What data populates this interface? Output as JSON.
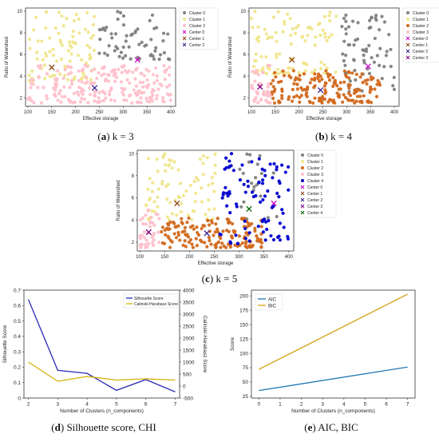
{
  "captions": [
    {
      "id": "a",
      "letter": "a",
      "text": " k = 3"
    },
    {
      "id": "b",
      "letter": "b",
      "text": " k = 4"
    },
    {
      "id": "c",
      "letter": "c",
      "text": " k = 5"
    },
    {
      "id": "d",
      "letter": "d",
      "text": " Silhouette score, CHI"
    },
    {
      "id": "e",
      "letter": "e",
      "text": " AIC, BIC"
    }
  ],
  "chart_data": [
    {
      "id": "a",
      "type": "scatter",
      "title": "",
      "xlabel": "Effective storage",
      "ylabel": "Ratio of Watershed",
      "xlim": [
        95,
        410
      ],
      "ylim": [
        1.2,
        10.3
      ],
      "xticks": [
        100,
        150,
        200,
        250,
        300,
        350,
        400
      ],
      "yticks": [
        2,
        4,
        6,
        8,
        10
      ],
      "legend_position": "top-right",
      "clusters": [
        {
          "name": "Cluster 0",
          "color": "#808080",
          "region": {
            "x": [
              245,
              400
            ],
            "y": [
              5.5,
              10
            ]
          },
          "n": 60
        },
        {
          "name": "Cluster 1",
          "color": "#f0e68c",
          "region": {
            "x": [
              100,
              240
            ],
            "y": [
              3.5,
              10
            ]
          },
          "n": 90
        },
        {
          "name": "Cluster 2",
          "color": "#ffc0cb",
          "region": {
            "x": [
              100,
              400
            ],
            "y": [
              1.5,
              5
            ]
          },
          "n": 220
        }
      ],
      "centers": [
        {
          "name": "Center 0",
          "color": "#cc00cc",
          "x": 330,
          "y": 5.5
        },
        {
          "name": "Center 1",
          "color": "#8b4513",
          "x": 150,
          "y": 4.8
        },
        {
          "name": "Center 2",
          "color": "#3a1d8f",
          "x": 240,
          "y": 2.9
        }
      ]
    },
    {
      "id": "b",
      "type": "scatter",
      "title": "",
      "xlabel": "Effective storage",
      "ylabel": "Ratio of Watershed",
      "xlim": [
        95,
        410
      ],
      "ylim": [
        1.2,
        10.3
      ],
      "xticks": [
        100,
        150,
        200,
        250,
        300,
        350,
        400
      ],
      "yticks": [
        2,
        4,
        6,
        8,
        10
      ],
      "legend_position": "top-right",
      "clusters": [
        {
          "name": "Cluster 0",
          "color": "#808080",
          "region": {
            "x": [
              290,
              400
            ],
            "y": [
              2.5,
              10
            ]
          },
          "n": 70
        },
        {
          "name": "Cluster 1",
          "color": "#f0e68c",
          "region": {
            "x": [
              100,
              280
            ],
            "y": [
              4.2,
              10
            ]
          },
          "n": 100
        },
        {
          "name": "Cluster 2",
          "color": "#d2691e",
          "region": {
            "x": [
              140,
              370
            ],
            "y": [
              1.5,
              4.5
            ]
          },
          "n": 170
        },
        {
          "name": "Cluster 3",
          "color": "#ffc0cb",
          "region": {
            "x": [
              100,
              140
            ],
            "y": [
              1.5,
              5
            ]
          },
          "n": 40
        }
      ],
      "centers": [
        {
          "name": "Center 0",
          "color": "#cc00cc",
          "x": 345,
          "y": 4.9
        },
        {
          "name": "Center 1",
          "color": "#8b4513",
          "x": 185,
          "y": 5.5
        },
        {
          "name": "Center 2",
          "color": "#3a1d8f",
          "x": 245,
          "y": 2.7
        },
        {
          "name": "Center 3",
          "color": "#800080",
          "x": 118,
          "y": 3.0
        }
      ]
    },
    {
      "id": "c",
      "type": "scatter",
      "title": "",
      "xlabel": "Effective storage",
      "ylabel": "Ratio of Watershed",
      "xlim": [
        95,
        410
      ],
      "ylim": [
        1.2,
        10.3
      ],
      "xticks": [
        100,
        150,
        200,
        250,
        300,
        350,
        400
      ],
      "yticks": [
        2,
        4,
        6,
        8,
        10
      ],
      "legend_position": "top-right",
      "clusters": [
        {
          "name": "Cluster 0",
          "color": "#808080",
          "region": {
            "x": [
              300,
              400
            ],
            "y": [
              4,
              10
            ]
          },
          "n": 20
        },
        {
          "name": "Cluster 1",
          "color": "#f0e68c",
          "region": {
            "x": [
              110,
              260
            ],
            "y": [
              4,
              10
            ]
          },
          "n": 80
        },
        {
          "name": "Cluster 2",
          "color": "#d2691e",
          "region": {
            "x": [
              140,
              350
            ],
            "y": [
              1.5,
              4.2
            ]
          },
          "n": 150
        },
        {
          "name": "Cluster 3",
          "color": "#ffc0cb",
          "region": {
            "x": [
              100,
              140
            ],
            "y": [
              1.5,
              5
            ]
          },
          "n": 40
        },
        {
          "name": "Cluster 4",
          "color": "#0000cd",
          "region": {
            "x": [
              260,
              400
            ],
            "y": [
              1.8,
              10
            ]
          },
          "n": 90
        }
      ],
      "centers": [
        {
          "name": "Center 0",
          "color": "#cc00cc",
          "x": 370,
          "y": 5.5
        },
        {
          "name": "Center 1",
          "color": "#8b4513",
          "x": 175,
          "y": 5.5
        },
        {
          "name": "Center 2",
          "color": "#3a1d8f",
          "x": 235,
          "y": 2.8
        },
        {
          "name": "Center 3",
          "color": "#800080",
          "x": 118,
          "y": 2.9
        },
        {
          "name": "Center 4",
          "color": "#006400",
          "x": 320,
          "y": 5.0
        }
      ]
    },
    {
      "id": "d",
      "type": "line",
      "title": "",
      "xlabel": "Number of Clusters (n_components)",
      "ylabel": "Silhouette Score",
      "y2label": "Calinski-Harabasz Score",
      "x": [
        2,
        3,
        4,
        5,
        6,
        7
      ],
      "xlim": [
        1.85,
        7.15
      ],
      "ylim": [
        0,
        0.7
      ],
      "y2lim": [
        -500,
        4000
      ],
      "xticks": [
        2,
        3,
        4,
        5,
        6,
        7
      ],
      "yticks": [
        0.0,
        0.1,
        0.2,
        0.3,
        0.4,
        0.5,
        0.6,
        0.7
      ],
      "y2ticks": [
        -500,
        0,
        500,
        1000,
        1500,
        2000,
        2500,
        3000,
        3500,
        4000
      ],
      "legend_position": "top-right",
      "series": [
        {
          "name": "Silhouette Score",
          "color": "#2a2ab8",
          "axis": "left",
          "values": [
            0.64,
            0.18,
            0.16,
            0.05,
            0.12,
            0.04
          ]
        },
        {
          "name": "Calinski-Harabasz Score",
          "color": "#d4b000",
          "axis": "right",
          "values": [
            1000,
            200,
            400,
            250,
            300,
            250
          ]
        }
      ]
    },
    {
      "id": "e",
      "type": "line",
      "title": "",
      "xlabel": "Number of Clusters (n_components)",
      "ylabel": "Score",
      "x": [
        0,
        7
      ],
      "xlim": [
        -0.35,
        7.35
      ],
      "ylim": [
        22,
        210
      ],
      "xticks": [
        0,
        1,
        2,
        3,
        4,
        5,
        6,
        7
      ],
      "yticks": [
        25,
        50,
        75,
        100,
        125,
        150,
        175,
        200
      ],
      "legend_position": "top-left",
      "series": [
        {
          "name": "AIC",
          "color": "#1f77b4",
          "values": [
            35,
            76
          ]
        },
        {
          "name": "BIC",
          "color": "#d4a017",
          "values": [
            72,
            203
          ]
        }
      ]
    }
  ]
}
